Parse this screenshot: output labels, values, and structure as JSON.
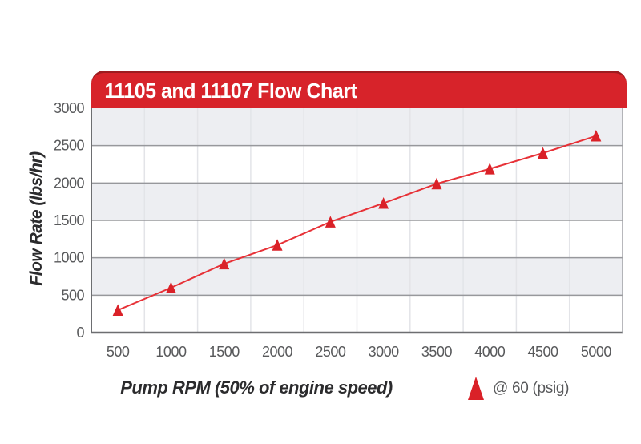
{
  "page": {
    "background_color": "#ffffff"
  },
  "header": {
    "title": "11105 and 11107 Flow Chart",
    "background_color": "#d7232a",
    "top_edge_color": "#9e1b1f",
    "text_color": "#ffffff"
  },
  "chart_data": {
    "type": "line",
    "title": "11105 and 11107 Flow Chart",
    "xlabel": "Pump RPM (50% of engine speed)",
    "ylabel": "Flow Rate (lbs/hr)",
    "x": [
      500,
      1000,
      1500,
      2000,
      2500,
      3000,
      3500,
      4000,
      4500,
      5000
    ],
    "series": [
      {
        "name": "@ 60 (psig)",
        "marker": "triangle",
        "marker_color": "#da2128",
        "line_color": "#e73137",
        "values": [
          300,
          600,
          920,
          1170,
          1480,
          1730,
          1990,
          2190,
          2400,
          2630
        ]
      }
    ],
    "ylim": [
      0,
      3000
    ],
    "y_ticks": [
      0,
      500,
      1000,
      1500,
      2000,
      2500,
      3000
    ],
    "x_ticks": [
      500,
      1000,
      1500,
      2000,
      2500,
      3000,
      3500,
      4000,
      4500,
      5000
    ],
    "grid": "horizontal gridlines every 500, vertical gridlines every 500 RPM",
    "band_colors": [
      "#edeef2",
      "#ffffff"
    ],
    "h_gridline_color": "#97989c",
    "v_gridline_color": "#e3e4e8",
    "axis_color": "#6d6e71",
    "right_border_color": "#a0a1a5",
    "tick_label_color": "#58595b",
    "legend_position": "bottom-right"
  },
  "legend": {
    "marker_icon": "red-triangle",
    "marker_color": "#da2128",
    "label": "@ 60 (psig)"
  }
}
